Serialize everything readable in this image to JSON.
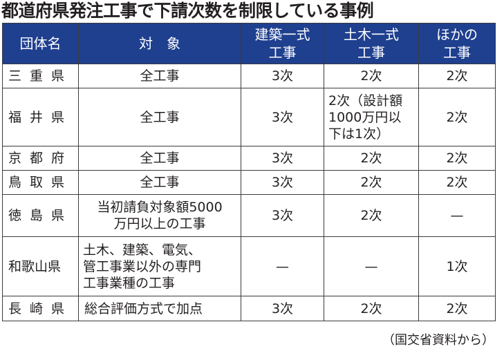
{
  "title": "都道府県発注工事で下請次数を制限している事例",
  "table": {
    "headers": [
      "団体名",
      "対　象",
      "建築一式\n工事",
      "土木一式\n工事",
      "ほかの\n工事"
    ],
    "rows": [
      {
        "pref": "三重県",
        "target": "全工事",
        "building": "3次",
        "civil": "2次",
        "other": "2次"
      },
      {
        "pref": "福井県",
        "target": "全工事",
        "building": "3次",
        "civil": "2次（設計額\n1000万円以\n下は1次）",
        "other": "2次"
      },
      {
        "pref": "京都府",
        "target": "全工事",
        "building": "3次",
        "civil": "2次",
        "other": "2次"
      },
      {
        "pref": "鳥取県",
        "target": "全工事",
        "building": "3次",
        "civil": "2次",
        "other": "2次"
      },
      {
        "pref": "徳島県",
        "target": "当初請負対象額5000\n万円以上の工事",
        "building": "3次",
        "civil": "2次",
        "other": "—"
      },
      {
        "pref": "和歌山県",
        "target": "土木、建築、電気、\n管工事業以外の専門\n工事業種の工事",
        "building": "—",
        "civil": "—",
        "other": "1次"
      },
      {
        "pref": "長崎県",
        "target": "総合評価方式で加点",
        "building": "3次",
        "civil": "2次",
        "other": "2次"
      }
    ]
  },
  "source": "（国交省資料から）"
}
